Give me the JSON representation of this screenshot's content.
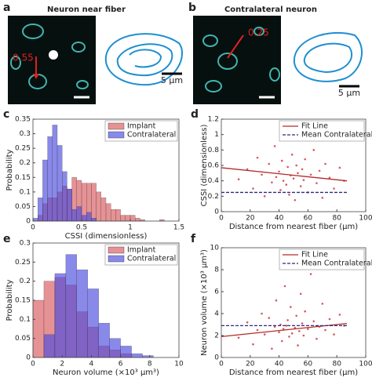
{
  "images": [
    {
      "panel": "a",
      "title": "Neuron near fiber",
      "annotation": "0.55",
      "scale_bar": "5 µm"
    },
    {
      "panel": "b",
      "title": "Contralateral neuron",
      "annotation": "0.25",
      "scale_bar": "5 µm"
    }
  ],
  "chart_data": [
    {
      "type": "histogram",
      "panel": "c",
      "xlabel": "CSSI (dimensionless)",
      "ylabel": "Probability",
      "bins": [
        0,
        0.05,
        0.1,
        0.15,
        0.2,
        0.25,
        0.3,
        0.35,
        0.4,
        0.45,
        0.5,
        0.55,
        0.6,
        0.65,
        0.7,
        0.75,
        0.8,
        0.85,
        0.9,
        0.95,
        1,
        1.05,
        1.1,
        1.15,
        1.2,
        1.25,
        1.3,
        1.35,
        1.4,
        1.45,
        1.5
      ],
      "series": [
        {
          "name": "Implant",
          "color": "#d9585c",
          "values": [
            0,
            0.02,
            0.06,
            0.08,
            0.08,
            0.1,
            0.12,
            0.11,
            0.15,
            0.14,
            0.13,
            0.13,
            0.13,
            0.1,
            0.08,
            0.06,
            0.04,
            0.04,
            0.02,
            0.02,
            0.02,
            0.01,
            0.005,
            0,
            0,
            0,
            0.005,
            0,
            0,
            0
          ]
        },
        {
          "name": "Contralateral",
          "color": "#4a4adf",
          "values": [
            0.01,
            0.08,
            0.21,
            0.29,
            0.33,
            0.26,
            0.17,
            0.11,
            0.04,
            0.05,
            0.02,
            0.03,
            0.01,
            0,
            0,
            0,
            0,
            0,
            0,
            0,
            0,
            0,
            0,
            0,
            0,
            0,
            0,
            0,
            0,
            0
          ]
        }
      ],
      "xlim": [
        0,
        1.5
      ],
      "xticks": [
        0,
        0.5,
        1,
        1.5
      ],
      "ylim": [
        0,
        0.35
      ],
      "yticks": [
        0,
        0.05,
        0.1,
        0.15,
        0.2,
        0.25,
        0.3,
        0.35
      ],
      "legend": "upper right"
    },
    {
      "type": "scatter",
      "panel": "d",
      "xlabel": "Distance from nearest fiber (µm)",
      "ylabel": "CSSI (dimensionless)",
      "points": {
        "color": "#d9585c",
        "x": [
          12,
          18,
          22,
          25,
          28,
          30,
          33,
          35,
          37,
          38,
          40,
          41,
          42,
          43,
          44,
          45,
          46,
          47,
          48,
          49,
          50,
          51,
          52,
          53,
          54,
          55,
          56,
          57,
          58,
          60,
          62,
          64,
          66,
          68,
          70,
          72,
          75,
          78,
          82,
          85
        ],
        "values": [
          0.42,
          0.55,
          0.3,
          0.7,
          0.48,
          0.2,
          0.62,
          0.38,
          0.85,
          0.45,
          0.52,
          0.28,
          0.66,
          0.4,
          0.95,
          0.35,
          0.58,
          0.22,
          0.47,
          0.74,
          0.43,
          0.15,
          0.6,
          0.5,
          1.02,
          0.33,
          0.55,
          0.41,
          0.68,
          0.25,
          0.48,
          0.8,
          0.37,
          0.53,
          0.18,
          0.62,
          0.44,
          0.3,
          0.57,
          0.4
        ]
      },
      "series": [
        {
          "name": "Fit Line",
          "color": "#b22a2a",
          "style": "solid",
          "x": [
            0,
            87
          ],
          "values": [
            0.57,
            0.4
          ]
        },
        {
          "name": "Mean Contralateral",
          "color": "#2a2a7a",
          "style": "dashed",
          "x": [
            0,
            87
          ],
          "values": [
            0.25,
            0.25
          ]
        }
      ],
      "xlim": [
        0,
        100
      ],
      "xticks": [
        0,
        20,
        40,
        60,
        80,
        100
      ],
      "ylim": [
        0,
        1.2
      ],
      "yticks": [
        0,
        0.2,
        0.4,
        0.6,
        0.8,
        1,
        1.2
      ],
      "legend": "upper right"
    },
    {
      "type": "histogram",
      "panel": "e",
      "xlabel": "Neuron volume (×10³ µm³)",
      "ylabel": "Probability",
      "bins": [
        0,
        0.75,
        1.5,
        2.25,
        3,
        3.75,
        4.5,
        5.25,
        6,
        6.75,
        7.5,
        8.25
      ],
      "series": [
        {
          "name": "Implant",
          "color": "#d9585c",
          "values": [
            0.15,
            0.2,
            0.21,
            0.19,
            0.12,
            0.08,
            0.03,
            0.02,
            0.01,
            0,
            0
          ]
        },
        {
          "name": "Contralateral",
          "color": "#4a4adf",
          "values": [
            0,
            0.06,
            0.22,
            0.27,
            0.23,
            0.18,
            0.09,
            0.05,
            0.03,
            0.01,
            0.005
          ]
        }
      ],
      "xlim": [
        0,
        10
      ],
      "xticks": [
        0,
        2,
        4,
        6,
        8,
        10
      ],
      "ylim": [
        0,
        0.3
      ],
      "yticks": [
        0,
        0.05,
        0.1,
        0.15,
        0.2,
        0.25,
        0.3
      ],
      "legend": "upper right"
    },
    {
      "type": "scatter",
      "panel": "f",
      "xlabel": "Distance from nearest fiber (µm)",
      "ylabel": "Neuron volume (×10³ µm³)",
      "points": {
        "color": "#d9585c",
        "x": [
          12,
          18,
          22,
          25,
          28,
          30,
          33,
          35,
          37,
          38,
          40,
          41,
          42,
          43,
          44,
          45,
          46,
          47,
          48,
          49,
          50,
          51,
          52,
          53,
          54,
          55,
          56,
          57,
          58,
          60,
          62,
          64,
          66,
          68,
          70,
          72,
          75,
          78,
          82,
          85
        ],
        "values": [
          1.8,
          3.2,
          1.2,
          2.5,
          4,
          2.1,
          3.6,
          0.8,
          2.8,
          5.2,
          2.3,
          3,
          1.5,
          2.6,
          6.5,
          2.9,
          3.4,
          1.9,
          4.6,
          2.2,
          9.6,
          2.7,
          3.8,
          1.1,
          2.4,
          5.8,
          3.1,
          2,
          4.2,
          2.6,
          7.6,
          3.3,
          1.7,
          2.8,
          4.9,
          2.5,
          3.5,
          2.1,
          3.9,
          2.9
        ]
      },
      "series": [
        {
          "name": "Fit Line",
          "color": "#b22a2a",
          "style": "solid",
          "x": [
            0,
            87
          ],
          "values": [
            1.9,
            3.1
          ]
        },
        {
          "name": "Mean Contralateral",
          "color": "#2a2a7a",
          "style": "dashed",
          "x": [
            0,
            87
          ],
          "values": [
            2.9,
            2.9
          ]
        }
      ],
      "xlim": [
        0,
        100
      ],
      "xticks": [
        0,
        20,
        40,
        60,
        80,
        100
      ],
      "ylim": [
        0,
        10
      ],
      "yticks": [
        0,
        2,
        4,
        6,
        8,
        10
      ],
      "legend": "upper right"
    }
  ]
}
